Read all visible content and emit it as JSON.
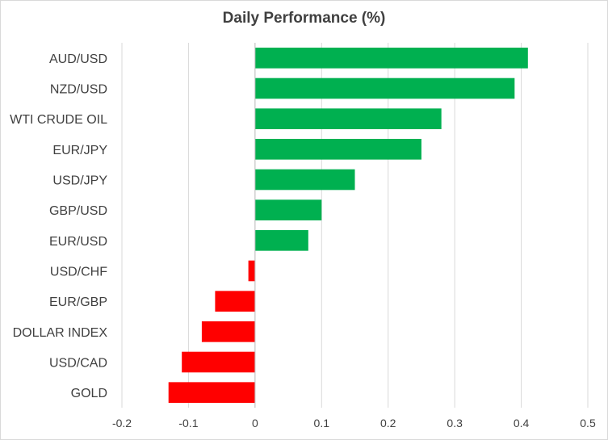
{
  "chart_data": {
    "type": "bar",
    "orientation": "horizontal",
    "title": "Daily Performance (%)",
    "xlabel": "",
    "ylabel": "",
    "categories": [
      "AUD/USD",
      "NZD/USD",
      "WTI CRUDE OIL",
      "EUR/JPY",
      "USD/JPY",
      "GBP/USD",
      "EUR/USD",
      "USD/CHF",
      "EUR/GBP",
      "DOLLAR INDEX",
      "USD/CAD",
      "GOLD"
    ],
    "values": [
      0.41,
      0.39,
      0.28,
      0.25,
      0.15,
      0.1,
      0.08,
      -0.01,
      -0.06,
      -0.08,
      -0.11,
      -0.13
    ],
    "xlim": [
      -0.2,
      0.5
    ],
    "x_ticks": [
      -0.2,
      -0.1,
      0,
      0.1,
      0.2,
      0.3,
      0.4,
      0.5
    ],
    "x_tick_labels": [
      "-0.2",
      "-0.1",
      "0",
      "0.1",
      "0.2",
      "0.3",
      "0.4",
      "0.5"
    ],
    "grid": true,
    "legend": "none",
    "colors": {
      "positive": "#00b050",
      "negative": "#ff0000",
      "grid": "#d9d9d9",
      "text": "#404040"
    }
  }
}
